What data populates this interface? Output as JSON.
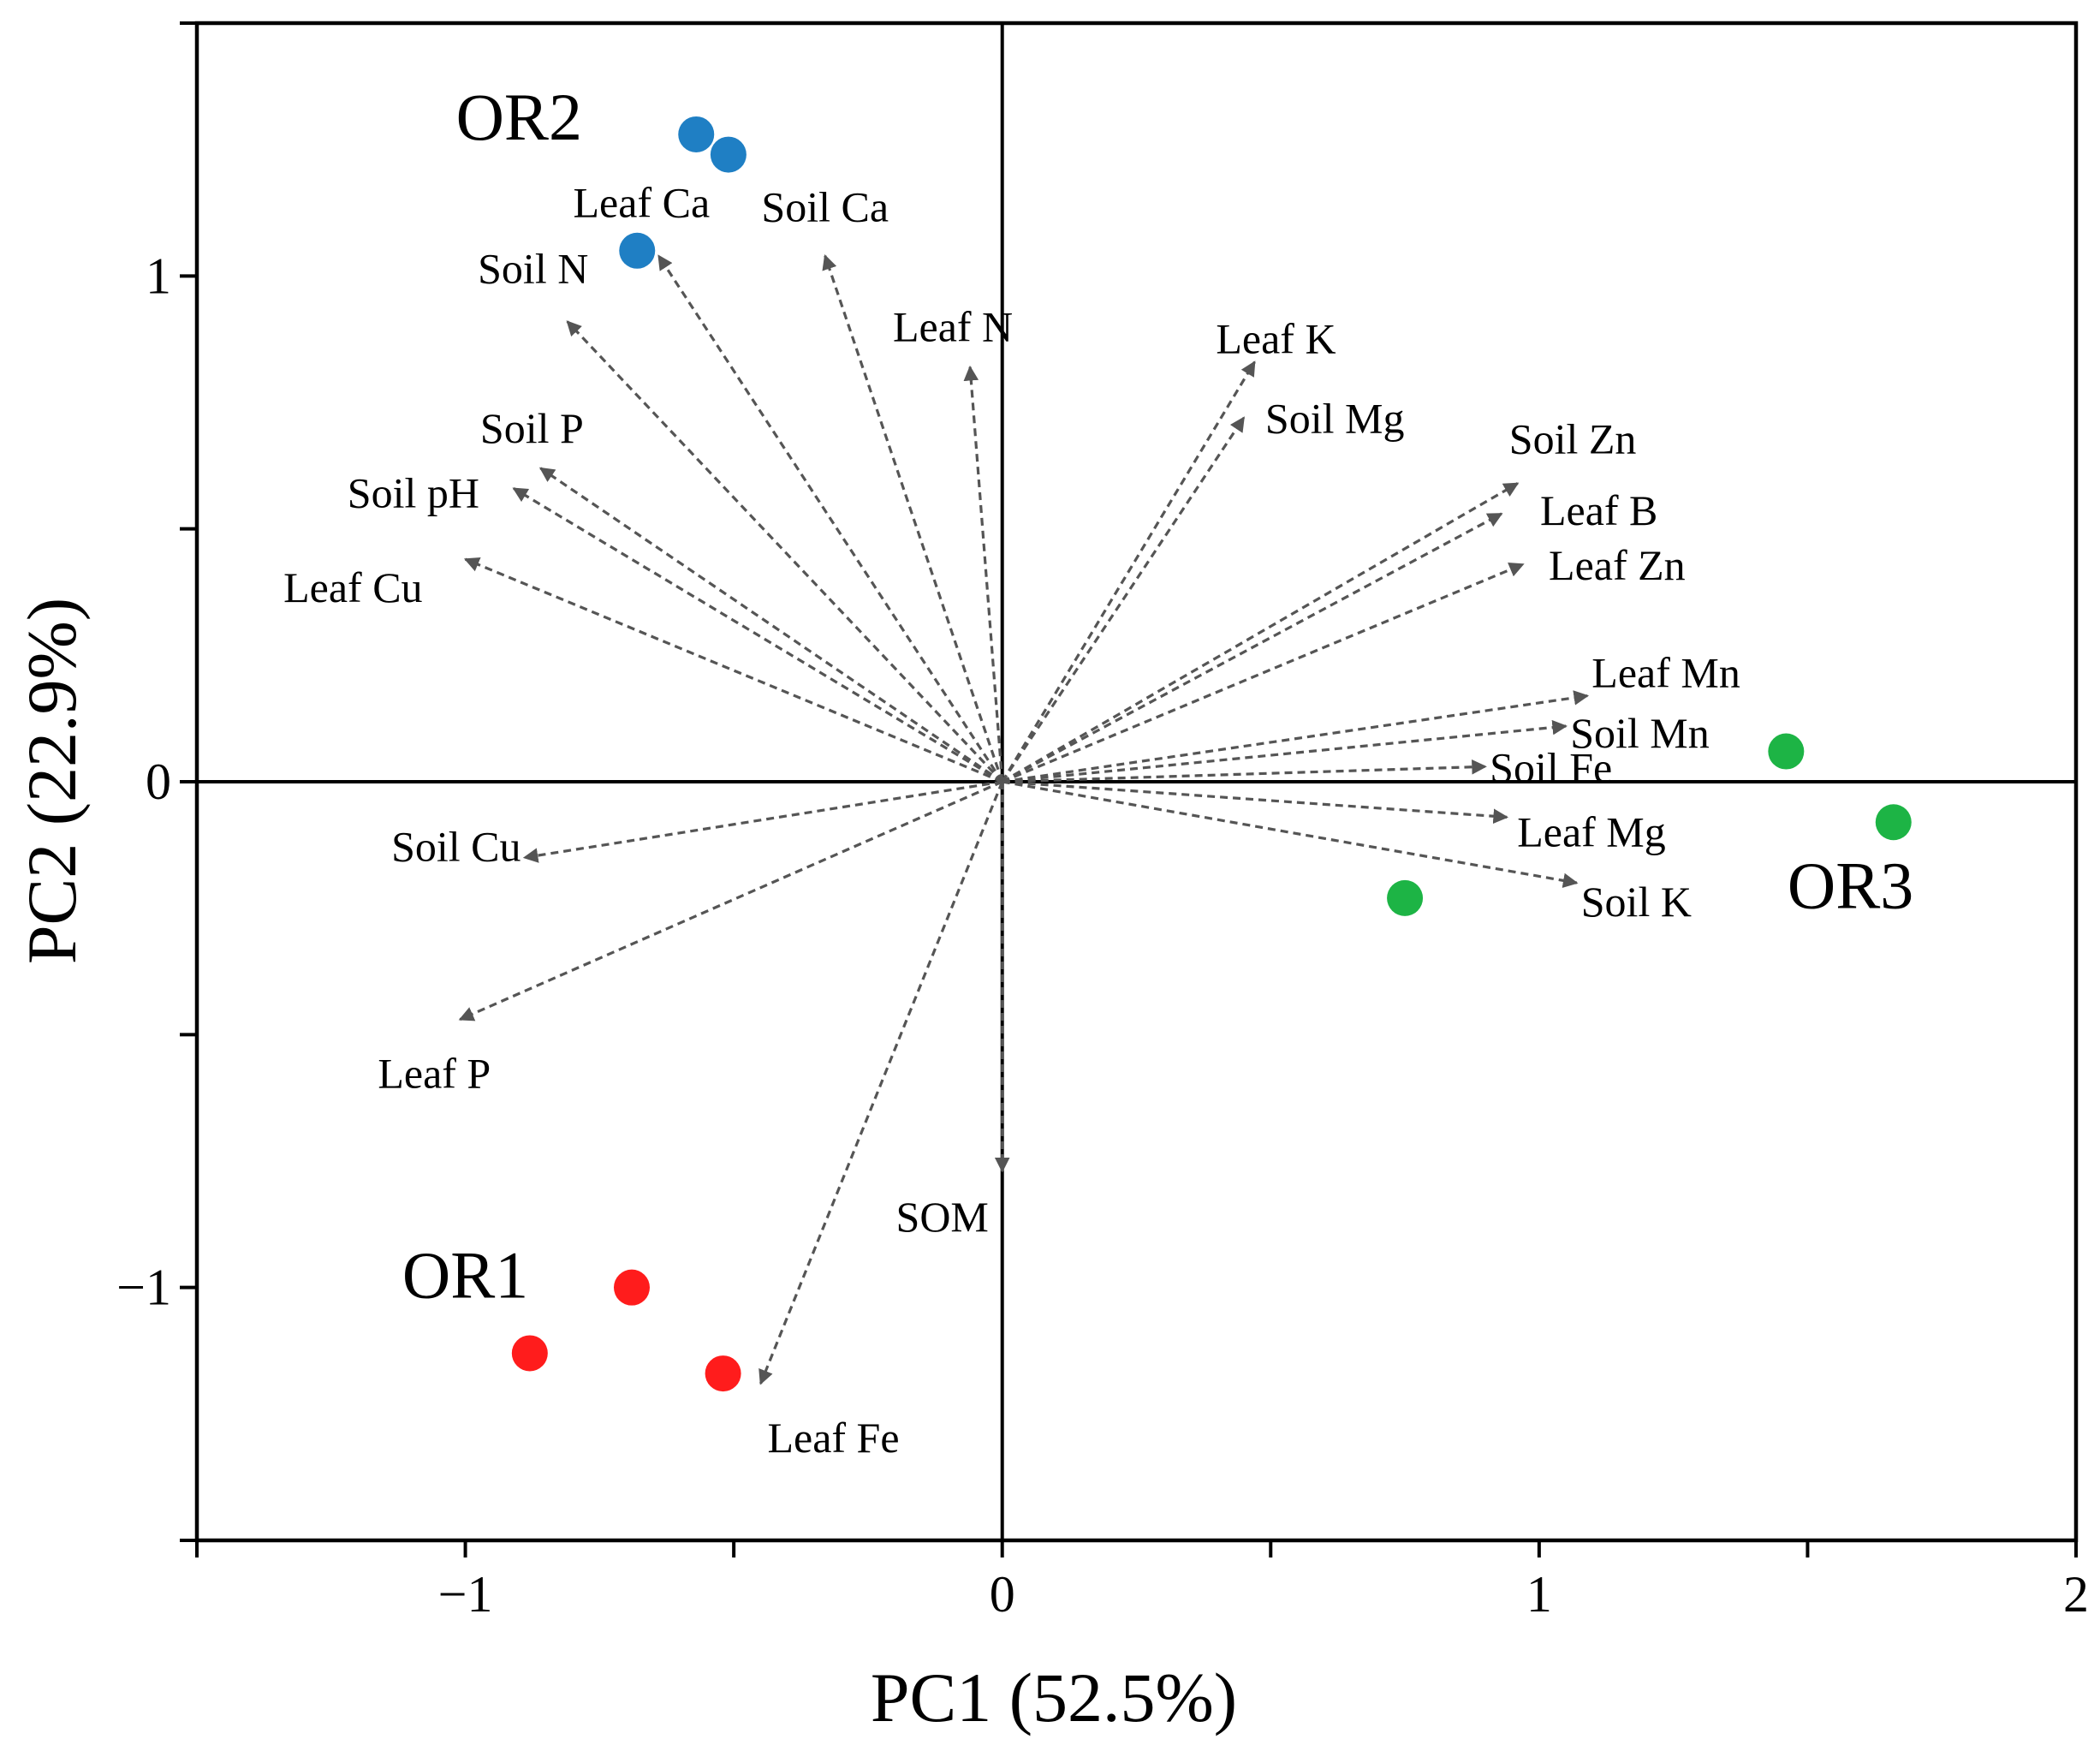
{
  "chart_data": {
    "type": "scatter",
    "subtype": "pca-biplot",
    "title": "",
    "xlabel": "PC1 (52.5%)",
    "ylabel": "PC2 (22.9%)",
    "xlim": [
      -1.5,
      2.0
    ],
    "ylim": [
      -1.5,
      1.5
    ],
    "xticks": [
      -1,
      0,
      1,
      2
    ],
    "xtick_labels": [
      "−1",
      "0",
      "1",
      "2"
    ],
    "yticks": [
      -1,
      0,
      1
    ],
    "ytick_labels": [
      "−1",
      "0",
      "1"
    ],
    "reference_lines": {
      "x": 0,
      "y": 0
    },
    "groups": [
      {
        "name": "OR1",
        "label": "OR1",
        "color": "#ff1c1c",
        "points": [
          {
            "x": -0.88,
            "y": -1.13
          },
          {
            "x": -0.69,
            "y": -1.0
          },
          {
            "x": -0.52,
            "y": -1.17
          }
        ]
      },
      {
        "name": "OR2",
        "label": "OR2",
        "color": "#1f7fc4",
        "points": [
          {
            "x": -0.57,
            "y": 1.28
          },
          {
            "x": -0.51,
            "y": 1.24
          },
          {
            "x": -0.68,
            "y": 1.05
          }
        ]
      },
      {
        "name": "OR3",
        "label": "OR3",
        "color": "#1db445",
        "points": [
          {
            "x": 1.46,
            "y": 0.06
          },
          {
            "x": 1.66,
            "y": -0.08
          },
          {
            "x": 0.75,
            "y": -0.23
          }
        ]
      }
    ],
    "loadings": [
      {
        "name": "Leaf Ca",
        "x": -0.64,
        "y": 1.04
      },
      {
        "name": "Soil Ca",
        "x": -0.33,
        "y": 1.04
      },
      {
        "name": "Soil N",
        "x": -0.81,
        "y": 0.91
      },
      {
        "name": "Leaf N",
        "x": -0.06,
        "y": 0.82
      },
      {
        "name": "Soil P",
        "x": -0.86,
        "y": 0.62
      },
      {
        "name": "Soil pH",
        "x": -0.91,
        "y": 0.58
      },
      {
        "name": "Leaf Cu",
        "x": -1.0,
        "y": 0.44
      },
      {
        "name": "Leaf K",
        "x": 0.47,
        "y": 0.83
      },
      {
        "name": "Soil Mg",
        "x": 0.45,
        "y": 0.72
      },
      {
        "name": "Soil Zn",
        "x": 0.96,
        "y": 0.59
      },
      {
        "name": "Leaf B",
        "x": 0.93,
        "y": 0.53
      },
      {
        "name": "Leaf Zn",
        "x": 0.97,
        "y": 0.43
      },
      {
        "name": "Leaf Mn",
        "x": 1.09,
        "y": 0.17
      },
      {
        "name": "Soil Mn",
        "x": 1.05,
        "y": 0.11
      },
      {
        "name": "Soil Fe",
        "x": 0.9,
        "y": 0.03
      },
      {
        "name": "Leaf Mg",
        "x": 0.94,
        "y": -0.07
      },
      {
        "name": "Soil K",
        "x": 1.07,
        "y": -0.2
      },
      {
        "name": "Soil Cu",
        "x": -0.89,
        "y": -0.15
      },
      {
        "name": "Leaf P",
        "x": -1.01,
        "y": -0.47
      },
      {
        "name": "SOM",
        "x": 0.0,
        "y": -0.77
      },
      {
        "name": "Leaf Fe",
        "x": -0.45,
        "y": -1.19
      }
    ]
  }
}
